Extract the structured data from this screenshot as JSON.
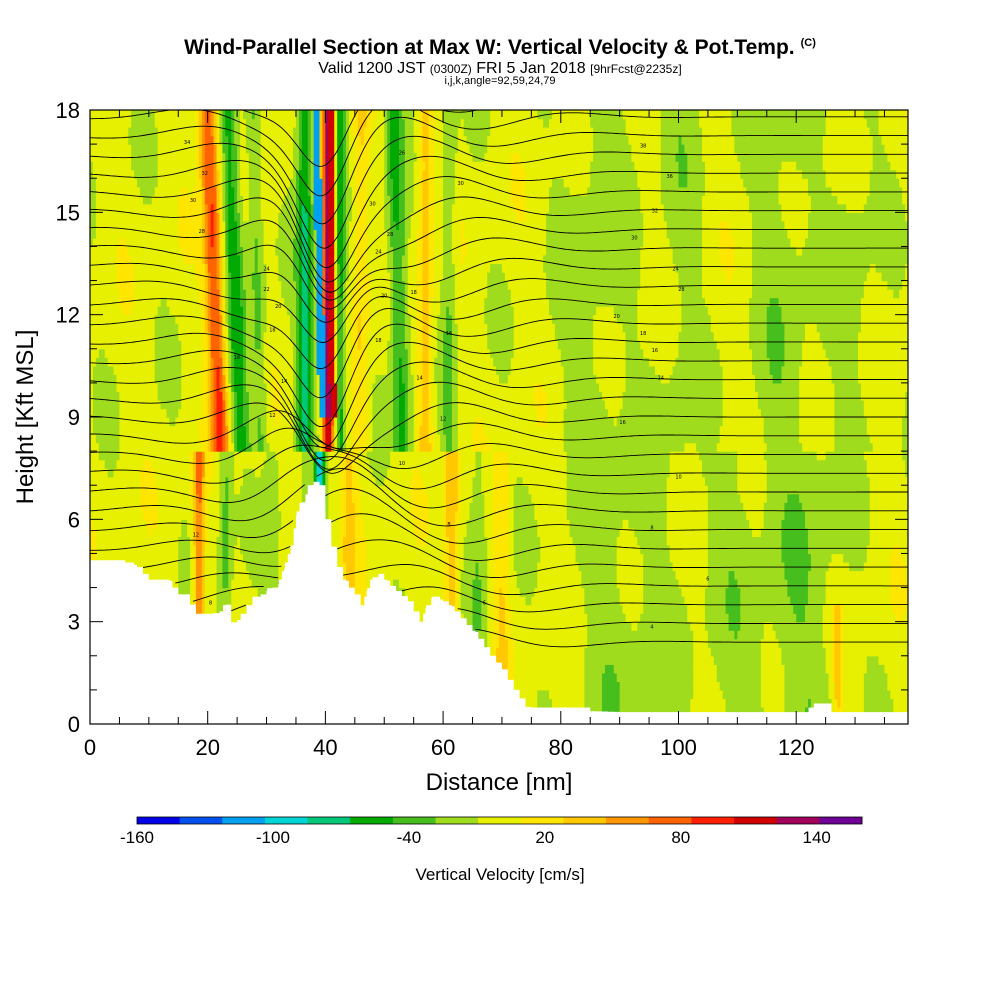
{
  "header": {
    "title": "Wind-Parallel Section at Max W: Vertical Velocity & Pot.Temp.",
    "copyright": "(C)",
    "valid_prefix": "Valid 1200 JST",
    "valid_utc": "(0300Z)",
    "valid_date": "FRI 5 Jan 2018",
    "forecast_info": "[9hrFcst@2235z]",
    "indices": "i,j,k,angle=92,59,24,79"
  },
  "chart_data": {
    "type": "heatmap",
    "xlabel": "Distance [nm]",
    "ylabel": "Height [Kft MSL]",
    "xlim": [
      0,
      139
    ],
    "ylim": [
      0,
      18
    ],
    "x_ticks": [
      0,
      20,
      40,
      60,
      80,
      100,
      120
    ],
    "y_ticks": [
      0,
      3,
      6,
      9,
      12,
      15,
      18
    ],
    "x_minor_step": 5,
    "y_minor_step": 1,
    "colorbar": {
      "title": "Vertical Velocity [cm/s]",
      "bins": [
        -160,
        -140,
        -120,
        -100,
        -80,
        -60,
        -40,
        -20,
        0,
        20,
        40,
        60,
        80,
        100,
        120,
        140,
        160
      ],
      "colors": [
        "#0000e6",
        "#0050f0",
        "#00a0f0",
        "#00d4d4",
        "#00c878",
        "#00aa00",
        "#46be1e",
        "#a0dc1e",
        "#e6f000",
        "#ffe600",
        "#ffc800",
        "#ff9600",
        "#ff6400",
        "#ff1e00",
        "#d20000",
        "#a0005a",
        "#6e0096"
      ],
      "tick_labels": [
        -160,
        -100,
        -40,
        20,
        80,
        140
      ]
    },
    "terrain_kft": [
      [
        0,
        4.8
      ],
      [
        5,
        4.8
      ],
      [
        8,
        4.6
      ],
      [
        10,
        4.2
      ],
      [
        13,
        4.2
      ],
      [
        14,
        4.0
      ],
      [
        15,
        3.8
      ],
      [
        16,
        3.8
      ],
      [
        17,
        3.5
      ],
      [
        18,
        3.2
      ],
      [
        20,
        3.2
      ],
      [
        22,
        3.3
      ],
      [
        23,
        3.5
      ],
      [
        24,
        2.9
      ],
      [
        26,
        3.2
      ],
      [
        28,
        3.7
      ],
      [
        30,
        3.9
      ],
      [
        32,
        4.1
      ],
      [
        34,
        5.0
      ],
      [
        35,
        6.1
      ],
      [
        36,
        6.5
      ],
      [
        37,
        7.0
      ],
      [
        38,
        7.1
      ],
      [
        39,
        7.0
      ],
      [
        40,
        6.0
      ],
      [
        41,
        5.2
      ],
      [
        42,
        4.6
      ],
      [
        43,
        4.2
      ],
      [
        44,
        4.0
      ],
      [
        45,
        3.8
      ],
      [
        46,
        3.4
      ],
      [
        47,
        3.9
      ],
      [
        48,
        4.3
      ],
      [
        49,
        4.4
      ],
      [
        50,
        4.2
      ],
      [
        52,
        3.9
      ],
      [
        54,
        3.6
      ],
      [
        55,
        3.3
      ],
      [
        56,
        3.0
      ],
      [
        57,
        3.4
      ],
      [
        58,
        3.7
      ],
      [
        60,
        3.6
      ],
      [
        62,
        3.3
      ],
      [
        64,
        2.9
      ],
      [
        66,
        2.5
      ],
      [
        68,
        2.0
      ],
      [
        70,
        1.6
      ],
      [
        72,
        1.0
      ],
      [
        74,
        0.5
      ],
      [
        76,
        0.4
      ],
      [
        80,
        0.4
      ],
      [
        90,
        0.35
      ],
      [
        100,
        0.35
      ],
      [
        110,
        0.35
      ],
      [
        120,
        0.35
      ],
      [
        122,
        0.35
      ],
      [
        123,
        0.6
      ],
      [
        125,
        0.6
      ],
      [
        126,
        0.35
      ],
      [
        130,
        0.35
      ],
      [
        139,
        0.35
      ]
    ],
    "theta_contour_labels": [
      {
        "x": 18,
        "y": 5.5,
        "text": "12"
      },
      {
        "x": 20.5,
        "y": 3.5,
        "text": "8"
      },
      {
        "x": 31,
        "y": 9.0,
        "text": "12"
      },
      {
        "x": 33,
        "y": 10.0,
        "text": "14"
      },
      {
        "x": 25,
        "y": 10.7,
        "text": "16"
      },
      {
        "x": 31,
        "y": 11.5,
        "text": "18"
      },
      {
        "x": 32,
        "y": 12.2,
        "text": "20"
      },
      {
        "x": 30,
        "y": 12.7,
        "text": "22"
      },
      {
        "x": 30,
        "y": 13.3,
        "text": "24"
      },
      {
        "x": 19,
        "y": 14.4,
        "text": "28"
      },
      {
        "x": 17.5,
        "y": 15.3,
        "text": "30"
      },
      {
        "x": 19.5,
        "y": 16.1,
        "text": "32"
      },
      {
        "x": 16.5,
        "y": 17.0,
        "text": "34"
      },
      {
        "x": 53,
        "y": 16.7,
        "text": "26"
      },
      {
        "x": 63,
        "y": 15.8,
        "text": "30"
      },
      {
        "x": 48,
        "y": 15.2,
        "text": "30"
      },
      {
        "x": 51,
        "y": 14.3,
        "text": "28"
      },
      {
        "x": 49,
        "y": 13.8,
        "text": "24"
      },
      {
        "x": 50,
        "y": 12.5,
        "text": "20"
      },
      {
        "x": 55,
        "y": 12.6,
        "text": "18"
      },
      {
        "x": 49,
        "y": 11.2,
        "text": "18"
      },
      {
        "x": 56,
        "y": 10.1,
        "text": "14"
      },
      {
        "x": 61,
        "y": 11.4,
        "text": "16"
      },
      {
        "x": 60,
        "y": 8.9,
        "text": "12"
      },
      {
        "x": 53,
        "y": 7.6,
        "text": "10"
      },
      {
        "x": 61,
        "y": 5.8,
        "text": "8"
      },
      {
        "x": 67,
        "y": 3.5,
        "text": "6"
      },
      {
        "x": 94,
        "y": 16.9,
        "text": "38"
      },
      {
        "x": 98.5,
        "y": 16.0,
        "text": "36"
      },
      {
        "x": 96,
        "y": 15.0,
        "text": "32"
      },
      {
        "x": 92.5,
        "y": 14.2,
        "text": "30"
      },
      {
        "x": 99.5,
        "y": 13.3,
        "text": "24"
      },
      {
        "x": 100.5,
        "y": 12.7,
        "text": "28"
      },
      {
        "x": 89.5,
        "y": 11.9,
        "text": "20"
      },
      {
        "x": 94,
        "y": 11.4,
        "text": "18"
      },
      {
        "x": 96,
        "y": 10.9,
        "text": "16"
      },
      {
        "x": 97,
        "y": 10.1,
        "text": "14"
      },
      {
        "x": 90.5,
        "y": 8.8,
        "text": "16"
      },
      {
        "x": 100,
        "y": 7.2,
        "text": "10"
      },
      {
        "x": 95.5,
        "y": 5.7,
        "text": "8"
      },
      {
        "x": 105,
        "y": 4.2,
        "text": "6"
      },
      {
        "x": 95.5,
        "y": 2.8,
        "text": "4"
      }
    ]
  }
}
